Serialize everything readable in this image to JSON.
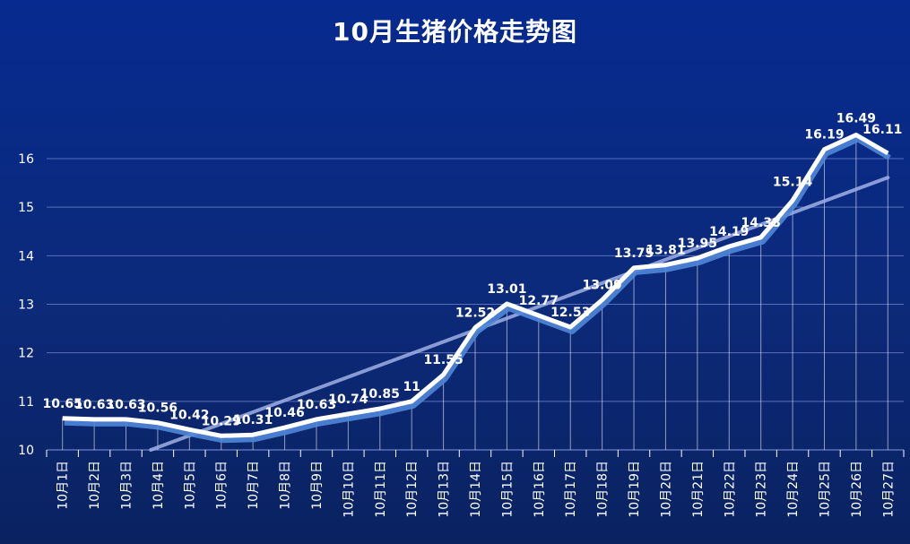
{
  "chart_data": {
    "type": "line",
    "title": "10月生猪价格走势图",
    "categories": [
      "10月1日",
      "10月2日",
      "10月3日",
      "10月4日",
      "10月5日",
      "10月6日",
      "10月7日",
      "10月8日",
      "10月9日",
      "10月10日",
      "10月11日",
      "10月12日",
      "10月13日",
      "10月14日",
      "10月15日",
      "10月16日",
      "10月17日",
      "10月18日",
      "10月19日",
      "10月20日",
      "10月21日",
      "10月22日",
      "10月23日",
      "10月24日",
      "10月25日",
      "10月26日",
      "10月27日"
    ],
    "series": [
      {
        "values": [
          10.65,
          10.63,
          10.63,
          10.56,
          10.42,
          10.29,
          10.31,
          10.46,
          10.63,
          10.74,
          10.85,
          11,
          11.55,
          12.52,
          13.01,
          12.77,
          12.53,
          13.09,
          13.75,
          13.81,
          13.95,
          14.19,
          14.38,
          15.14,
          16.19,
          16.49,
          16.11
        ],
        "labels": [
          "10.65",
          "10.63",
          "10.63",
          "10.56",
          "10.42",
          "10.29",
          "10.31",
          "10.46",
          "10.63",
          "10.74",
          "10.85",
          "11",
          "11.55",
          "12.52",
          "13.01",
          "12.77",
          "12.53",
          "13.09",
          "13.75",
          "13.81",
          "13.95",
          "14.19",
          "14.38",
          "15.14",
          "16.19",
          "16.49",
          "16.11"
        ]
      }
    ],
    "trendline": true,
    "ylim": [
      10,
      17
    ],
    "yticks": [
      "10",
      "11",
      "12",
      "13",
      "14",
      "15",
      "16"
    ],
    "grid": true,
    "xlabel": "",
    "ylabel": "",
    "colors": {
      "line": "#ffffff",
      "trend": "#9fb0e6",
      "grid": "#5a6fb8"
    }
  }
}
